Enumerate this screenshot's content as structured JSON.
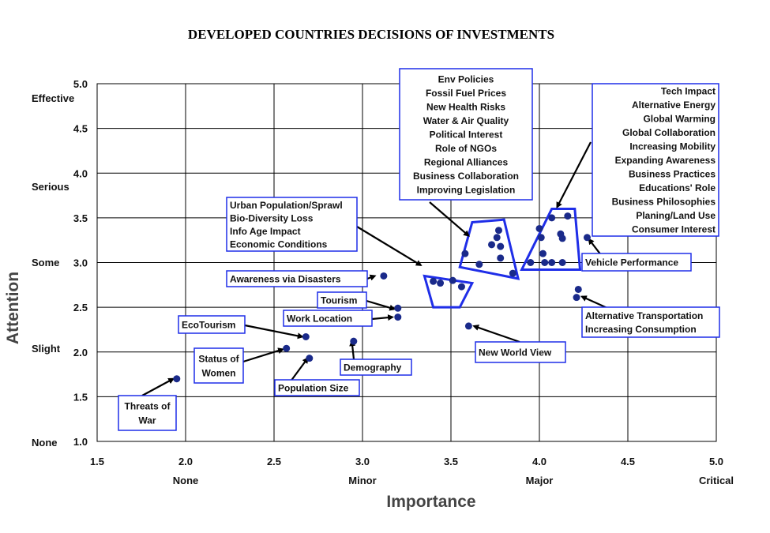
{
  "chart_data": {
    "type": "scatter",
    "title": "DEVELOPED COUNTRIES DECISIONS OF INVESTMENTS",
    "xlabel": "Importance",
    "ylabel": "Attention",
    "xlim": [
      1.5,
      5.0
    ],
    "ylim": [
      1.0,
      5.0
    ],
    "x_ticks": [
      "1.5",
      "2.0",
      "2.5",
      "3.0",
      "3.5",
      "4.0",
      "4.5",
      "5.0"
    ],
    "y_ticks": [
      "1.0",
      "1.5",
      "2.0",
      "2.5",
      "3.0",
      "3.5",
      "4.0",
      "4.5",
      "5.0"
    ],
    "x_categories": [
      {
        "x": 2.0,
        "label": "None"
      },
      {
        "x": 3.0,
        "label": "Minor"
      },
      {
        "x": 4.0,
        "label": "Major"
      },
      {
        "x": 5.0,
        "label": "Critical"
      }
    ],
    "y_categories": [
      {
        "y": 1.0,
        "label": "None"
      },
      {
        "y": 2.0,
        "label": "Slight"
      },
      {
        "y": 3.0,
        "label": "Some"
      },
      {
        "y": 4.0,
        "label": "Serious"
      },
      {
        "y": 5.0,
        "label": "Effective"
      }
    ],
    "grid": true,
    "marker_color": "#1a2a8a",
    "group_color": "#1f2ee8",
    "points": [
      {
        "x": 1.95,
        "y": 1.7
      },
      {
        "x": 2.57,
        "y": 2.04
      },
      {
        "x": 2.68,
        "y": 2.17
      },
      {
        "x": 2.7,
        "y": 1.93
      },
      {
        "x": 2.95,
        "y": 2.12
      },
      {
        "x": 3.12,
        "y": 2.85
      },
      {
        "x": 3.2,
        "y": 2.49
      },
      {
        "x": 3.2,
        "y": 2.39
      },
      {
        "x": 3.6,
        "y": 2.29
      },
      {
        "x": 3.4,
        "y": 2.79
      },
      {
        "x": 3.44,
        "y": 2.77
      },
      {
        "x": 3.51,
        "y": 2.8
      },
      {
        "x": 3.56,
        "y": 2.73
      },
      {
        "x": 3.58,
        "y": 3.1
      },
      {
        "x": 3.66,
        "y": 2.98
      },
      {
        "x": 3.73,
        "y": 3.2
      },
      {
        "x": 3.76,
        "y": 3.28
      },
      {
        "x": 3.77,
        "y": 3.36
      },
      {
        "x": 3.78,
        "y": 3.18
      },
      {
        "x": 3.78,
        "y": 3.05
      },
      {
        "x": 3.85,
        "y": 2.88
      },
      {
        "x": 3.95,
        "y": 3.0
      },
      {
        "x": 4.0,
        "y": 3.38
      },
      {
        "x": 4.01,
        "y": 3.28
      },
      {
        "x": 4.02,
        "y": 3.1
      },
      {
        "x": 4.03,
        "y": 3.0
      },
      {
        "x": 4.07,
        "y": 3.5
      },
      {
        "x": 4.07,
        "y": 3.0
      },
      {
        "x": 4.12,
        "y": 3.32
      },
      {
        "x": 4.13,
        "y": 3.27
      },
      {
        "x": 4.13,
        "y": 3.0
      },
      {
        "x": 4.16,
        "y": 3.52
      },
      {
        "x": 4.27,
        "y": 3.28
      },
      {
        "x": 4.22,
        "y": 2.7
      },
      {
        "x": 4.21,
        "y": 2.61
      }
    ],
    "labels": [
      {
        "lines": [
          "Env Policies",
          "Fossil Fuel Prices",
          "New Health Risks",
          "Water & Air Quality",
          "Political Interest",
          "Role of NGOs",
          "Regional Alliances",
          "Business Collaboration",
          "Improving Legislation"
        ],
        "align": "center"
      },
      {
        "lines": [
          "Tech Impact",
          "Alternative Energy",
          "Global Warming",
          "Global Collaboration",
          "Increasing Mobility",
          "Expanding Awareness",
          "Business Practices",
          "Educations' Role",
          "Business Philosophies",
          "Planing/Land Use",
          "Consumer Interest"
        ],
        "align": "end"
      },
      {
        "lines": [
          "Urban Population/Sprawl",
          "Bio-Diversity Loss",
          "Info Age Impact",
          "Economic Conditions"
        ],
        "align": "start"
      },
      {
        "lines": [
          "Awareness via Disasters"
        ],
        "align": "start"
      },
      {
        "lines": [
          "Tourism"
        ],
        "align": "start"
      },
      {
        "lines": [
          "Work Location"
        ],
        "align": "start"
      },
      {
        "lines": [
          "EcoTourism"
        ],
        "align": "start"
      },
      {
        "lines": [
          "Status of",
          "Women"
        ],
        "align": "middle"
      },
      {
        "lines": [
          "Demography"
        ],
        "align": "start"
      },
      {
        "lines": [
          "Population Size"
        ],
        "align": "start"
      },
      {
        "lines": [
          "Threats of",
          "War"
        ],
        "align": "middle"
      },
      {
        "lines": [
          "New World View"
        ],
        "align": "start"
      },
      {
        "lines": [
          "Vehicle Performance"
        ],
        "align": "start"
      },
      {
        "lines": [
          "Alternative Transportation",
          "Increasing Consumption"
        ],
        "align": "start"
      }
    ]
  }
}
